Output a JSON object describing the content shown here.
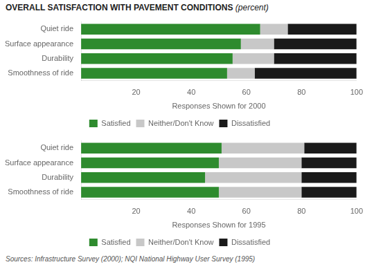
{
  "chart_data": [
    {
      "type": "bar",
      "orientation": "horizontal",
      "stacked": true,
      "title": "OVERALL SATISFACTION WITH PAVEMENT CONDITIONS",
      "subtitle": "(percent)",
      "categories": [
        "Quiet ride",
        "Surface appearance",
        "Durability",
        "Smoothness of ride"
      ],
      "series": [
        {
          "name": "Satisfied",
          "color": "#2e8b2e",
          "values": [
            65,
            58,
            55,
            53
          ]
        },
        {
          "name": "Neither/Don't Know",
          "color": "#c8c8c8",
          "values": [
            10,
            12,
            15,
            10
          ]
        },
        {
          "name": "Dissatisfied",
          "color": "#1a1a1a",
          "values": [
            25,
            30,
            30,
            37
          ]
        }
      ],
      "xlabel": "Responses Shown for 2000",
      "xlim": [
        0,
        100
      ],
      "xticks": [
        20,
        40,
        60,
        80,
        100
      ],
      "grid": false,
      "legend": "bottom"
    },
    {
      "type": "bar",
      "orientation": "horizontal",
      "stacked": true,
      "categories": [
        "Quiet ride",
        "Surface appearance",
        "Durability",
        "Smoothness of ride"
      ],
      "series": [
        {
          "name": "Satisfied",
          "color": "#2e8b2e",
          "values": [
            51,
            50,
            45,
            50
          ]
        },
        {
          "name": "Neither/Don't Know",
          "color": "#c8c8c8",
          "values": [
            30,
            30,
            35,
            30
          ]
        },
        {
          "name": "Dissatisfied",
          "color": "#1a1a1a",
          "values": [
            19,
            20,
            20,
            20
          ]
        }
      ],
      "xlabel": "Responses Shown for 1995",
      "xlim": [
        0,
        100
      ],
      "xticks": [
        20,
        40,
        60,
        80,
        100
      ],
      "grid": false,
      "legend": "bottom",
      "annotations": [
        "Sources: Infrastructure Survey (2000); NQI National Highway User Survey (1995)"
      ]
    }
  ]
}
